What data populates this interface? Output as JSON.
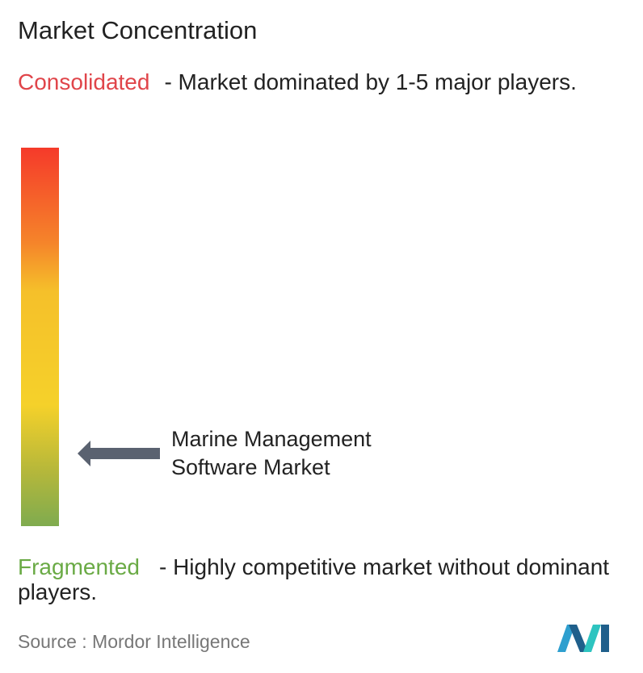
{
  "title": "Market Concentration",
  "consolidated": {
    "label": "Consolidated",
    "description": "- Market dominated by 1-5 major players."
  },
  "marker": {
    "label": "Marine Management Software Market"
  },
  "fragmented": {
    "label": "Fragmented",
    "description": "- Highly competitive market without dominant players."
  },
  "source": {
    "prefix": "Source :",
    "name": "Mordor Intelligence"
  }
}
